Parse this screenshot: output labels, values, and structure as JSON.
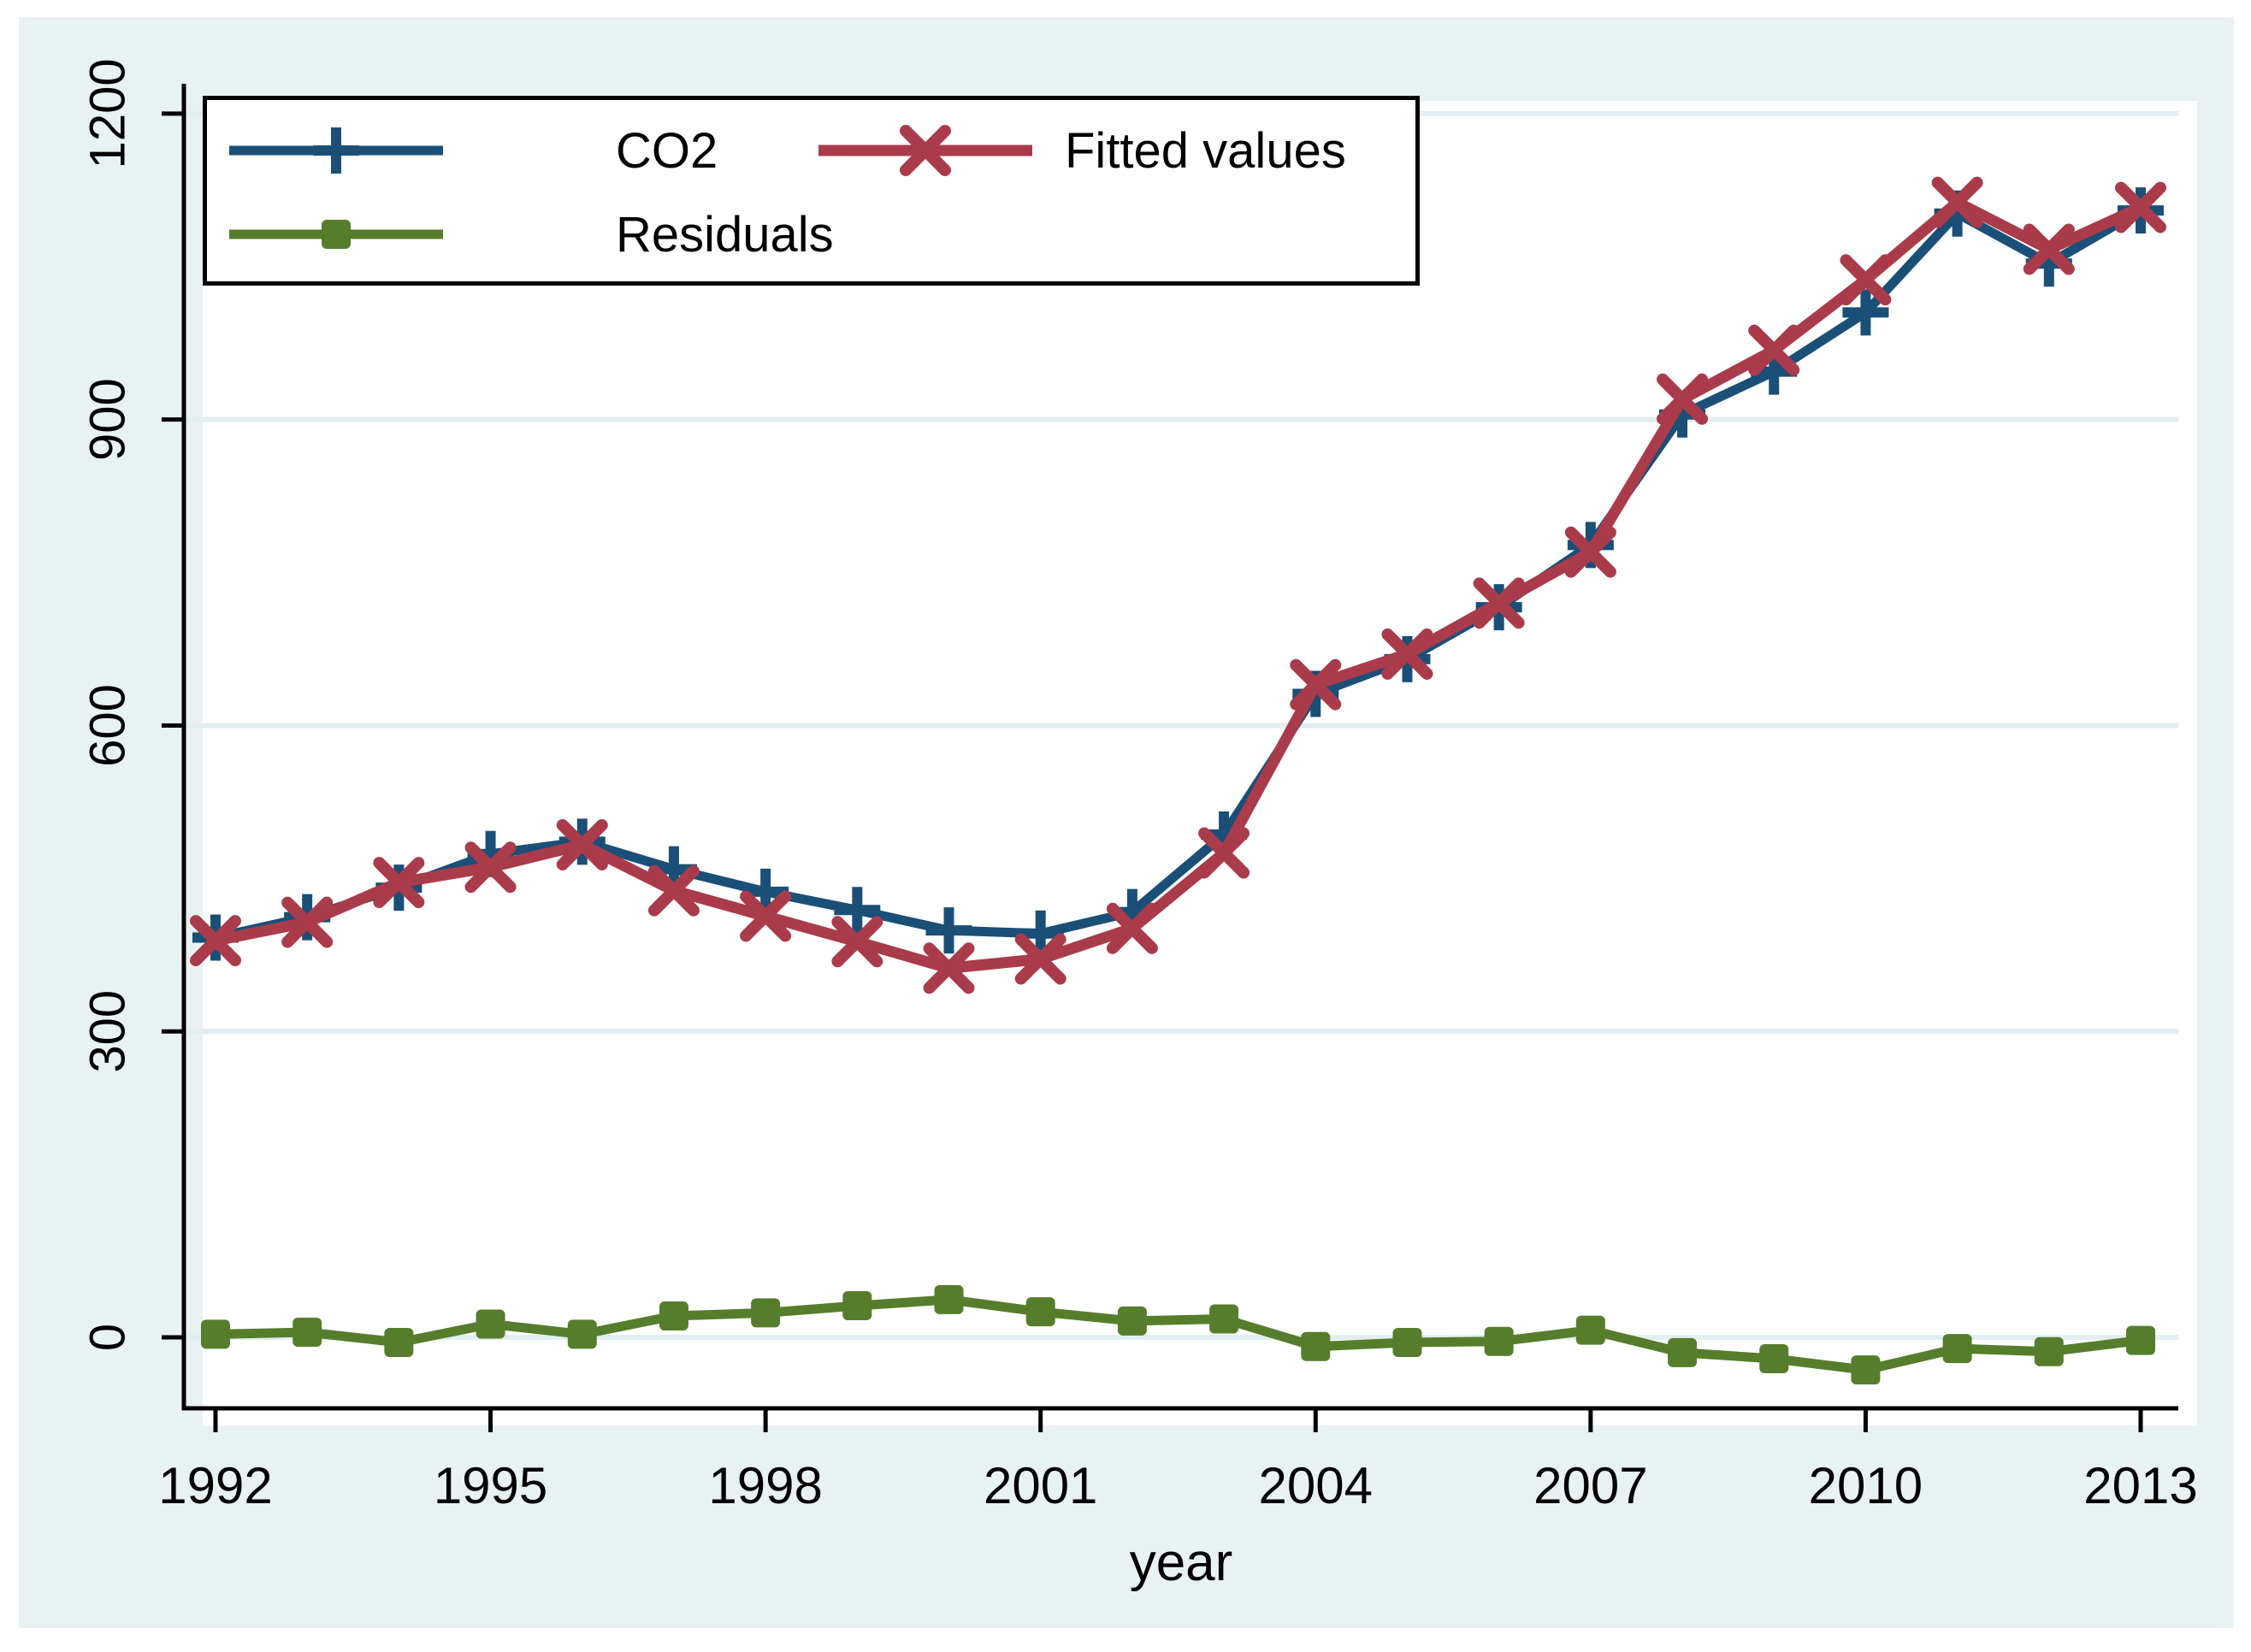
{
  "figure": {
    "xlabel": "year",
    "background_color": "#e9f2f3",
    "plot_background_color": "#ffffff",
    "gridline_color": "#e2eef0",
    "axis_color": "#000000"
  },
  "chart_data": {
    "type": "line",
    "title": "",
    "xlabel": "year",
    "ylabel": "",
    "grid": true,
    "legend_position": "top-left-inside-framed",
    "xlim": [
      1991.65,
      2013.4
    ],
    "ylim": [
      -70,
      1230
    ],
    "x_tick_values": [
      1992,
      1995,
      1998,
      2001,
      2004,
      2007,
      2010,
      2013
    ],
    "y_tick_values": [
      0,
      300,
      600,
      900,
      1200
    ],
    "x": [
      1992,
      1993,
      1994,
      1995,
      1996,
      1997,
      1998,
      1999,
      2000,
      2001,
      2002,
      2003,
      2004,
      2005,
      2006,
      2007,
      2008,
      2009,
      2010,
      2011,
      2012,
      2013
    ],
    "series": [
      {
        "name": "CO2",
        "color": "#1a4f78",
        "marker": "plus",
        "line_width": 11,
        "values": [
          392,
          412,
          441,
          474,
          486,
          459,
          437,
          419,
          399,
          396,
          417,
          493,
          631,
          665,
          716,
          777,
          905,
          947,
          1005,
          1102,
          1053,
          1105
        ]
      },
      {
        "name": "Fitted values",
        "color": "#aa3b4a",
        "marker": "cross",
        "line_width": 13,
        "values": [
          389,
          407,
          446,
          461,
          483,
          438,
          413,
          388,
          362,
          371,
          401,
          475,
          640,
          670,
          720,
          770,
          920,
          968,
          1037,
          1113,
          1067,
          1108
        ]
      },
      {
        "name": "Residuals",
        "color": "#567d2c",
        "marker": "square",
        "line_width": 11,
        "values": [
          3,
          5,
          -5,
          13,
          3,
          21,
          24,
          31,
          37,
          25,
          16,
          18,
          -9,
          -5,
          -4,
          7,
          -15,
          -21,
          -32,
          -11,
          -14,
          -3
        ]
      }
    ]
  }
}
